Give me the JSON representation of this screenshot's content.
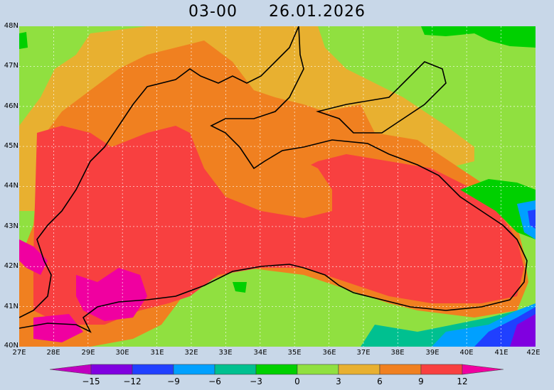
{
  "title": {
    "time": "03-00",
    "date": "26.01.2026"
  },
  "lat_labels": [
    "48N",
    "47N",
    "46N",
    "45N",
    "44N",
    "43N",
    "42N",
    "41N",
    "40N"
  ],
  "lon_labels": [
    "27E",
    "28E",
    "29E",
    "30E",
    "31E",
    "32E",
    "33E",
    "34E",
    "35E",
    "36E",
    "37E",
    "38E",
    "39E",
    "40E",
    "41E",
    "42E"
  ],
  "colorbar": {
    "labels": [
      "−15",
      "−12",
      "−9",
      "−6",
      "−3",
      "0",
      "3",
      "6",
      "9",
      "12"
    ],
    "colors": [
      "#c000c0",
      "#8000e0",
      "#2040ff",
      "#00a0ff",
      "#00c090",
      "#00d000",
      "#90e040",
      "#e8b030",
      "#f08020",
      "#f84040",
      "#f000a0"
    ]
  },
  "map_colors": {
    "background": "#90e040",
    "orange_light": "#e8b030",
    "orange": "#f08020",
    "red": "#f84040",
    "magenta": "#f000a0",
    "green": "#00d000",
    "green_dark": "#00c090",
    "cyan": "#00a0ff",
    "blue": "#2040ff",
    "purple": "#8000e0"
  }
}
